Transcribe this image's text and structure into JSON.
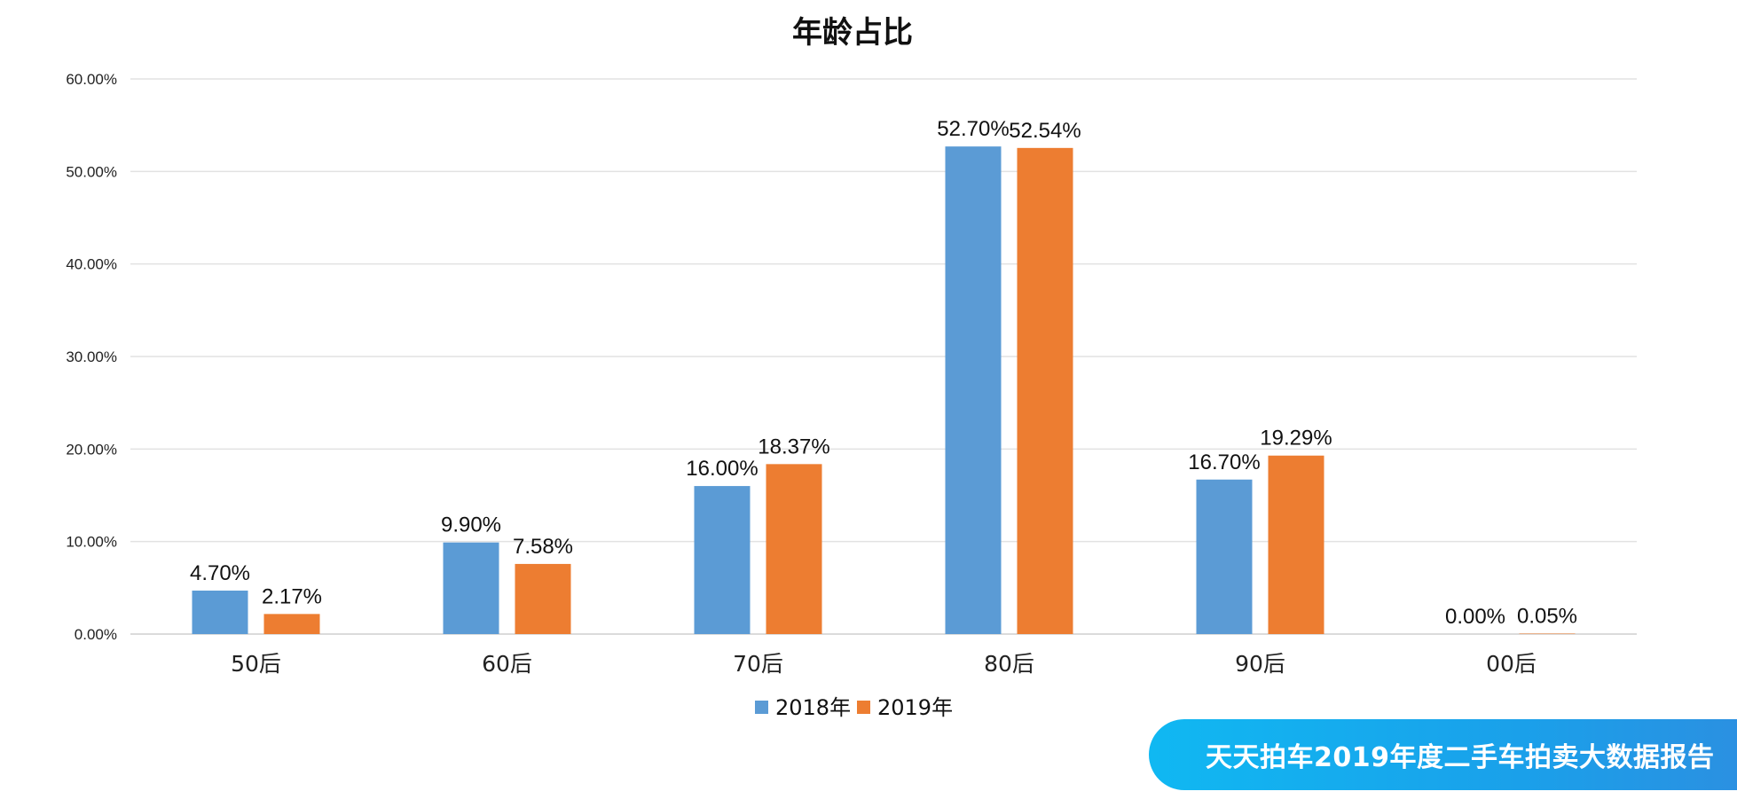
{
  "chart_data": {
    "type": "bar",
    "title": "年龄占比",
    "categories": [
      "50后",
      "60后",
      "70后",
      "80后",
      "90后",
      "00后"
    ],
    "series": [
      {
        "name": "2018年",
        "color": "#5b9bd5",
        "values": [
          4.7,
          9.9,
          16.0,
          52.7,
          16.7,
          0.0
        ],
        "labels": [
          "4.70%",
          "9.90%",
          "16.00%",
          "52.70%",
          "16.70%",
          "0.00%"
        ]
      },
      {
        "name": "2019年",
        "color": "#ed7d31",
        "values": [
          2.17,
          7.58,
          18.37,
          52.54,
          19.29,
          0.05
        ],
        "labels": [
          "2.17%",
          "7.58%",
          "18.37%",
          "52.54%",
          "19.29%",
          "0.05%"
        ]
      }
    ],
    "yticks": [
      {
        "value": 0,
        "label": "0.00%"
      },
      {
        "value": 10,
        "label": "10.00%"
      },
      {
        "value": 20,
        "label": "20.00%"
      },
      {
        "value": 30,
        "label": "30.00%"
      },
      {
        "value": 40,
        "label": "40.00%"
      },
      {
        "value": 50,
        "label": "50.00%"
      },
      {
        "value": 60,
        "label": "60.00%"
      }
    ],
    "ylim": [
      0,
      60
    ],
    "grid": true,
    "legend_position": "bottom"
  },
  "banner": {
    "text": "天天拍车2019年度二手车拍卖大数据报告"
  }
}
